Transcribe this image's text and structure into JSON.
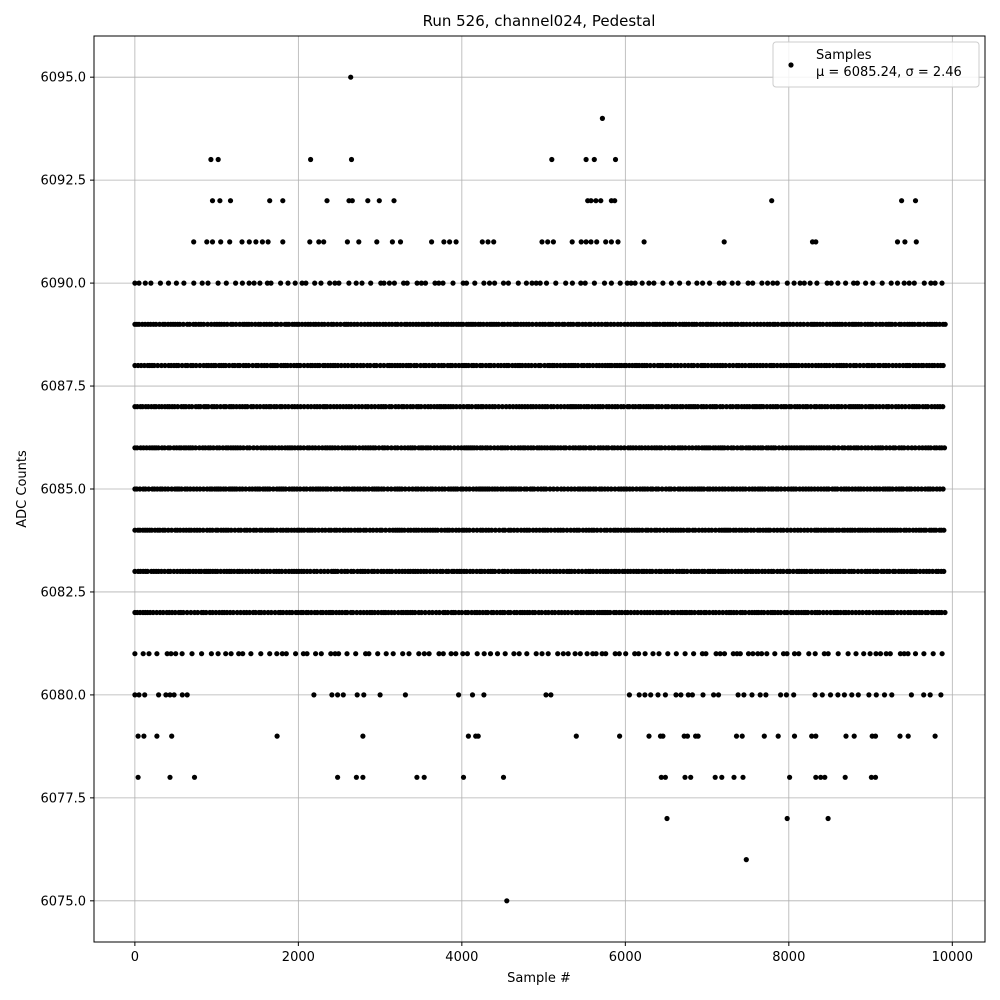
{
  "chart_data": {
    "type": "scatter",
    "title": "Run 526, channel024, Pedestal",
    "xlabel": "Sample #",
    "ylabel": "ADC Counts",
    "xlim": [
      -500,
      10400
    ],
    "ylim": [
      6074,
      6096
    ],
    "xticks": [
      0,
      2000,
      4000,
      6000,
      8000,
      10000
    ],
    "yticks": [
      6075.0,
      6077.5,
      6080.0,
      6082.5,
      6085.0,
      6087.5,
      6090.0,
      6092.5,
      6095.0
    ],
    "xtick_labels": [
      "0",
      "2000",
      "4000",
      "6000",
      "8000",
      "10000"
    ],
    "ytick_labels": [
      "6075.0",
      "6077.5",
      "6080.0",
      "6082.5",
      "6085.0",
      "6087.5",
      "6090.0",
      "6092.5",
      "6095.0"
    ],
    "grid": true,
    "legend_position": "top-right",
    "marker_color": "#000000",
    "series": [
      {
        "name": "Samples",
        "stats_label": "μ = 6085.24, σ = 2.46",
        "sample_count": 10000,
        "dense_levels": [
          6082,
          6083,
          6084,
          6085,
          6086,
          6087,
          6088,
          6089
        ],
        "sparse_levels": [
          6081,
          6090
        ],
        "points": [
          [
            2640,
            6095
          ],
          [
            4550,
            6075
          ],
          [
            7480,
            6076
          ],
          [
            5720,
            6094
          ],
          [
            930,
            6093
          ],
          [
            1020,
            6093
          ],
          [
            2150,
            6093
          ],
          [
            2650,
            6093
          ],
          [
            5100,
            6093
          ],
          [
            5520,
            6093
          ],
          [
            5620,
            6093
          ],
          [
            5880,
            6093
          ],
          [
            950,
            6092
          ],
          [
            1040,
            6092
          ],
          [
            1170,
            6092
          ],
          [
            1650,
            6092
          ],
          [
            1810,
            6092
          ],
          [
            2350,
            6092
          ],
          [
            2620,
            6092
          ],
          [
            2660,
            6092
          ],
          [
            2850,
            6092
          ],
          [
            2990,
            6092
          ],
          [
            3170,
            6092
          ],
          [
            5540,
            6092
          ],
          [
            5580,
            6092
          ],
          [
            5640,
            6092
          ],
          [
            5700,
            6092
          ],
          [
            5830,
            6092
          ],
          [
            5870,
            6092
          ],
          [
            7790,
            6092
          ],
          [
            9380,
            6092
          ],
          [
            9550,
            6092
          ],
          [
            720,
            6091
          ],
          [
            880,
            6091
          ],
          [
            950,
            6091
          ],
          [
            1050,
            6091
          ],
          [
            1160,
            6091
          ],
          [
            1310,
            6091
          ],
          [
            1400,
            6091
          ],
          [
            1480,
            6091
          ],
          [
            1560,
            6091
          ],
          [
            1630,
            6091
          ],
          [
            1810,
            6091
          ],
          [
            2140,
            6091
          ],
          [
            2250,
            6091
          ],
          [
            2310,
            6091
          ],
          [
            2600,
            6091
          ],
          [
            2740,
            6091
          ],
          [
            2960,
            6091
          ],
          [
            3150,
            6091
          ],
          [
            3250,
            6091
          ],
          [
            3630,
            6091
          ],
          [
            3780,
            6091
          ],
          [
            3850,
            6091
          ],
          [
            3930,
            6091
          ],
          [
            4250,
            6091
          ],
          [
            4320,
            6091
          ],
          [
            4390,
            6091
          ],
          [
            4980,
            6091
          ],
          [
            5050,
            6091
          ],
          [
            5120,
            6091
          ],
          [
            5350,
            6091
          ],
          [
            5460,
            6091
          ],
          [
            5520,
            6091
          ],
          [
            5580,
            6091
          ],
          [
            5650,
            6091
          ],
          [
            5760,
            6091
          ],
          [
            5830,
            6091
          ],
          [
            5910,
            6091
          ],
          [
            6230,
            6091
          ],
          [
            7210,
            6091
          ],
          [
            8290,
            6091
          ],
          [
            8330,
            6091
          ],
          [
            9330,
            6091
          ],
          [
            9420,
            6091
          ],
          [
            9560,
            6091
          ],
          [
            40,
            6078
          ],
          [
            430,
            6078
          ],
          [
            730,
            6078
          ],
          [
            2480,
            6078
          ],
          [
            2710,
            6078
          ],
          [
            2790,
            6078
          ],
          [
            3450,
            6078
          ],
          [
            3540,
            6078
          ],
          [
            4020,
            6078
          ],
          [
            4510,
            6078
          ],
          [
            6440,
            6078
          ],
          [
            6490,
            6078
          ],
          [
            6730,
            6078
          ],
          [
            6800,
            6078
          ],
          [
            7100,
            6078
          ],
          [
            7180,
            6078
          ],
          [
            7330,
            6078
          ],
          [
            7440,
            6078
          ],
          [
            8010,
            6078
          ],
          [
            8330,
            6078
          ],
          [
            8390,
            6078
          ],
          [
            8440,
            6078
          ],
          [
            8690,
            6078
          ],
          [
            9010,
            6078
          ],
          [
            9060,
            6078
          ],
          [
            6510,
            6077
          ],
          [
            7980,
            6077
          ],
          [
            8480,
            6077
          ],
          [
            40,
            6079
          ],
          [
            110,
            6079
          ],
          [
            270,
            6079
          ],
          [
            450,
            6079
          ],
          [
            1740,
            6079
          ],
          [
            2790,
            6079
          ],
          [
            4080,
            6079
          ],
          [
            4170,
            6079
          ],
          [
            4200,
            6079
          ],
          [
            5400,
            6079
          ],
          [
            5930,
            6079
          ],
          [
            6290,
            6079
          ],
          [
            6430,
            6079
          ],
          [
            6460,
            6079
          ],
          [
            6720,
            6079
          ],
          [
            6760,
            6079
          ],
          [
            6860,
            6079
          ],
          [
            6890,
            6079
          ],
          [
            7360,
            6079
          ],
          [
            7430,
            6079
          ],
          [
            7700,
            6079
          ],
          [
            7870,
            6079
          ],
          [
            8070,
            6079
          ],
          [
            8280,
            6079
          ],
          [
            8330,
            6079
          ],
          [
            8700,
            6079
          ],
          [
            8800,
            6079
          ],
          [
            9020,
            6079
          ],
          [
            9060,
            6079
          ],
          [
            9360,
            6079
          ],
          [
            9460,
            6079
          ],
          [
            9790,
            6079
          ],
          [
            0,
            6080
          ],
          [
            50,
            6080
          ],
          [
            120,
            6080
          ],
          [
            290,
            6080
          ],
          [
            380,
            6080
          ],
          [
            430,
            6080
          ],
          [
            480,
            6080
          ],
          [
            580,
            6080
          ],
          [
            640,
            6080
          ],
          [
            2190,
            6080
          ],
          [
            2410,
            6080
          ],
          [
            2480,
            6080
          ],
          [
            2550,
            6080
          ],
          [
            2720,
            6080
          ],
          [
            2800,
            6080
          ],
          [
            3000,
            6080
          ],
          [
            3310,
            6080
          ],
          [
            3960,
            6080
          ],
          [
            4130,
            6080
          ],
          [
            4270,
            6080
          ],
          [
            5030,
            6080
          ],
          [
            5090,
            6080
          ],
          [
            6050,
            6080
          ],
          [
            6170,
            6080
          ],
          [
            6240,
            6080
          ],
          [
            6310,
            6080
          ],
          [
            6400,
            6080
          ],
          [
            6490,
            6080
          ],
          [
            6620,
            6080
          ],
          [
            6680,
            6080
          ],
          [
            6770,
            6080
          ],
          [
            6820,
            6080
          ],
          [
            6950,
            6080
          ],
          [
            7080,
            6080
          ],
          [
            7140,
            6080
          ],
          [
            7380,
            6080
          ],
          [
            7450,
            6080
          ],
          [
            7550,
            6080
          ],
          [
            7650,
            6080
          ],
          [
            7720,
            6080
          ],
          [
            7900,
            6080
          ],
          [
            7970,
            6080
          ],
          [
            8060,
            6080
          ],
          [
            8320,
            6080
          ],
          [
            8410,
            6080
          ],
          [
            8510,
            6080
          ],
          [
            8600,
            6080
          ],
          [
            8680,
            6080
          ],
          [
            8770,
            6080
          ],
          [
            8850,
            6080
          ],
          [
            8980,
            6080
          ],
          [
            9070,
            6080
          ],
          [
            9170,
            6080
          ],
          [
            9260,
            6080
          ],
          [
            9500,
            6080
          ],
          [
            9650,
            6080
          ],
          [
            9730,
            6080
          ],
          [
            9860,
            6080
          ]
        ]
      }
    ]
  }
}
